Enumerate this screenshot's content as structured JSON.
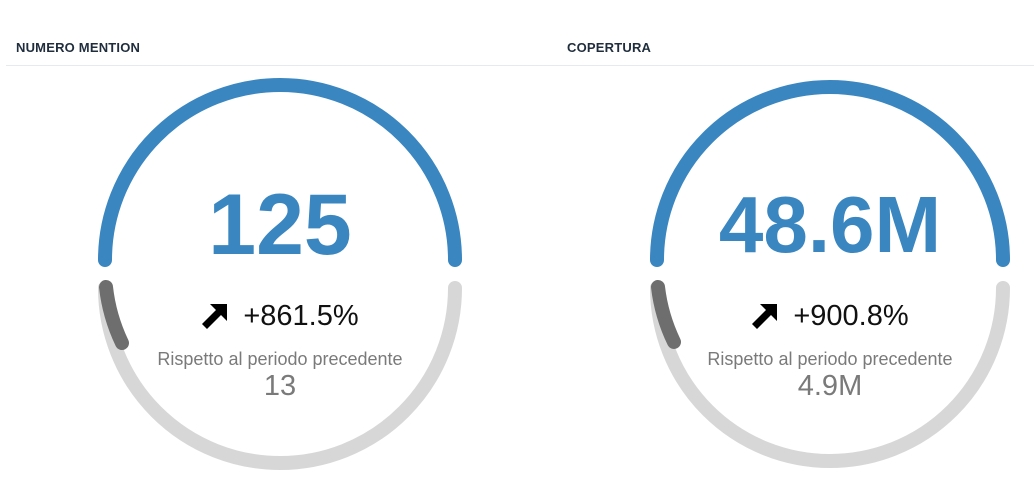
{
  "cards": [
    {
      "title": "NUMERO MENTION",
      "value": "125",
      "delta": "+861.5%",
      "compare_label": "Rispetto al periodo precedente",
      "compare_value": "13",
      "trend_icon": "arrow-up-right-icon"
    },
    {
      "title": "COPERTURA",
      "value": "48.6M",
      "delta": "+900.8%",
      "compare_label": "Rispetto al periodo precedente",
      "compare_value": "4.9M",
      "trend_icon": "arrow-up-right-icon"
    }
  ],
  "colors": {
    "accent": "#3a86c0",
    "track": "#d7d7d7",
    "previous_arc": "#6e6e6e",
    "title": "#1f2d3d",
    "muted_text": "#7a7a7a",
    "delta_text": "#111111"
  }
}
